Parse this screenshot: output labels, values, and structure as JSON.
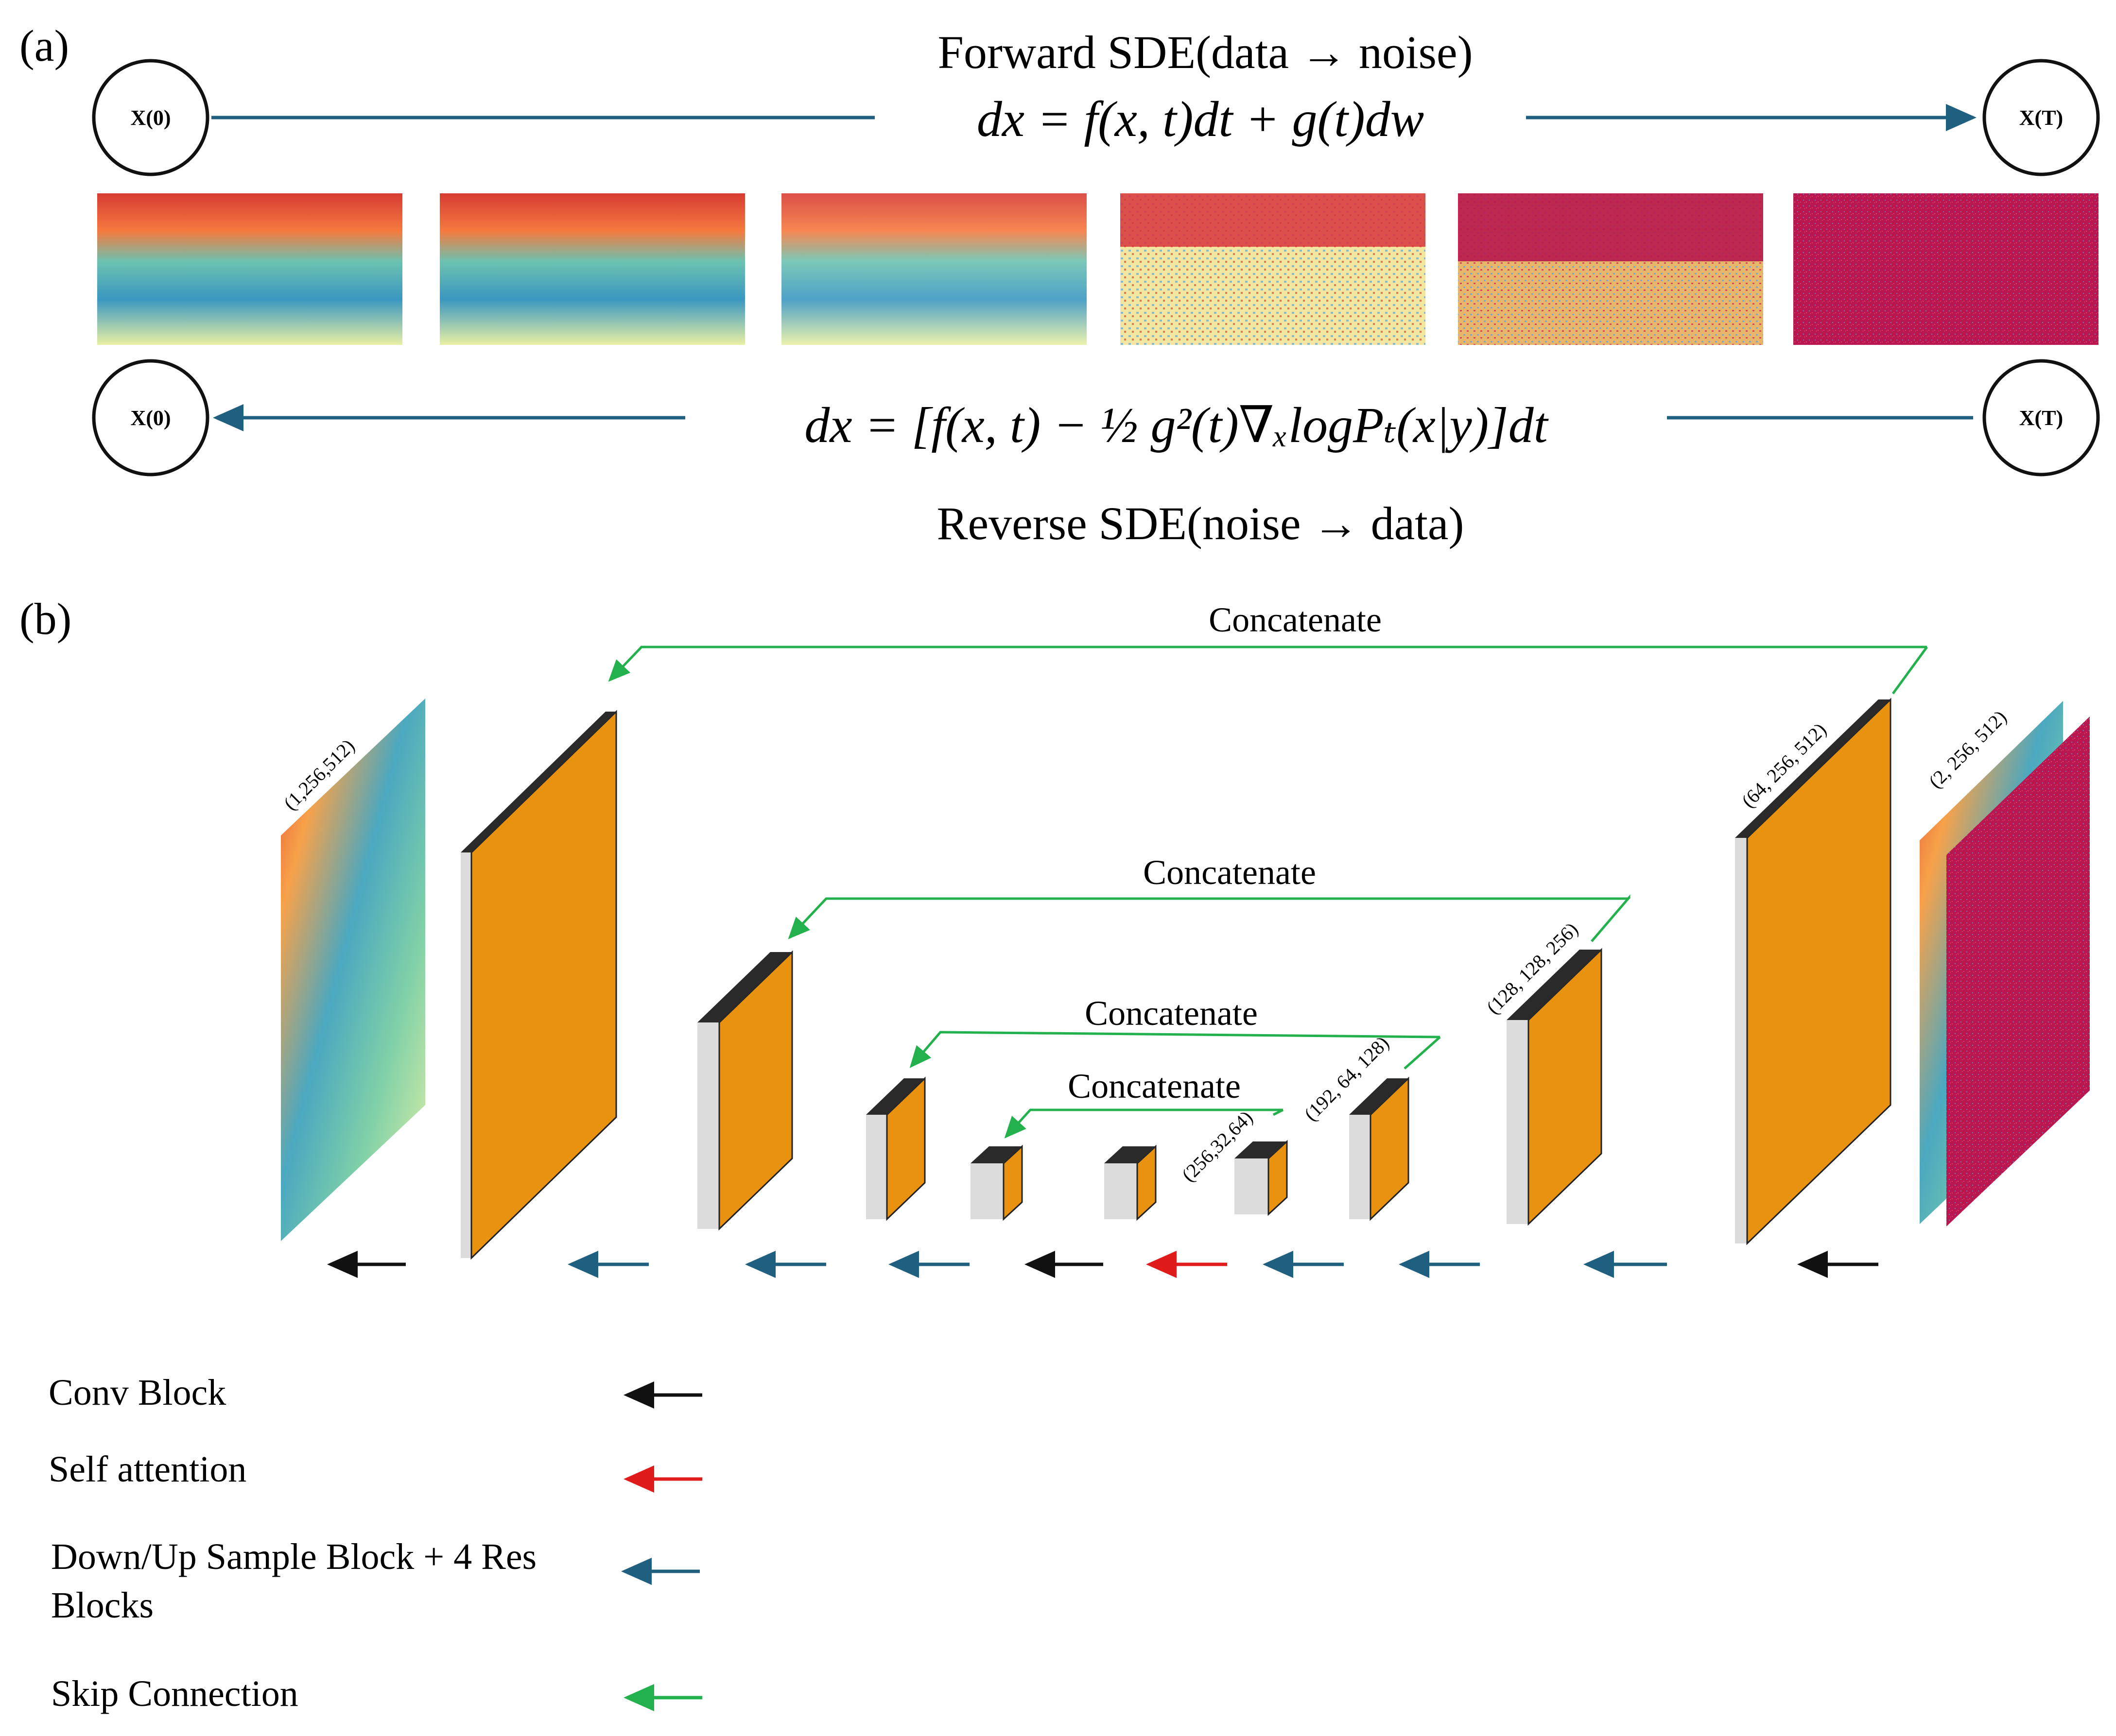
{
  "panel_a": {
    "label": "(a)",
    "forward_title": "Forward SDE(data → noise)",
    "forward_equation": "dx = f(x, t)dt + g(t)dw",
    "reverse_equation": "dx = [f(x, t) − ½ g²(t)∇ₓlogPₜ(x|y)]dt",
    "reverse_title": "Reverse SDE(noise → data)",
    "node_start": "X(0)",
    "node_end": "X(T)",
    "colors": {
      "arrow": "#1f5f7f"
    },
    "noise_strip_count": 6
  },
  "panel_b": {
    "label": "(b)",
    "concat_labels": [
      "Concatenate",
      "Concatenate",
      "Concatenate",
      "Concatenate"
    ],
    "shape_labels": {
      "input": "(1,256,512)",
      "encoder_out": "(64, 256, 512)",
      "level2": "(128, 128, 256)",
      "level3": "(192, 64, 128)",
      "level4": "(256,32,64)",
      "output": "(2, 256, 512)"
    },
    "colors": {
      "block_face": "#e8920f",
      "block_side": "#dcdcdc",
      "block_top": "#2a2a2a",
      "conv": "#111111",
      "attention": "#e01b1b",
      "sample": "#1f5f7f",
      "skip": "#22b14c"
    }
  },
  "legend": [
    {
      "label": "Conv Block",
      "color": "#111111"
    },
    {
      "label": "Self attention",
      "color": "#e01b1b"
    },
    {
      "label": "Down/Up Sample Block + 4 Res",
      "label2": "Blocks",
      "color": "#1f5f7f"
    },
    {
      "label": "Skip Connection",
      "color": "#22b14c"
    }
  ]
}
